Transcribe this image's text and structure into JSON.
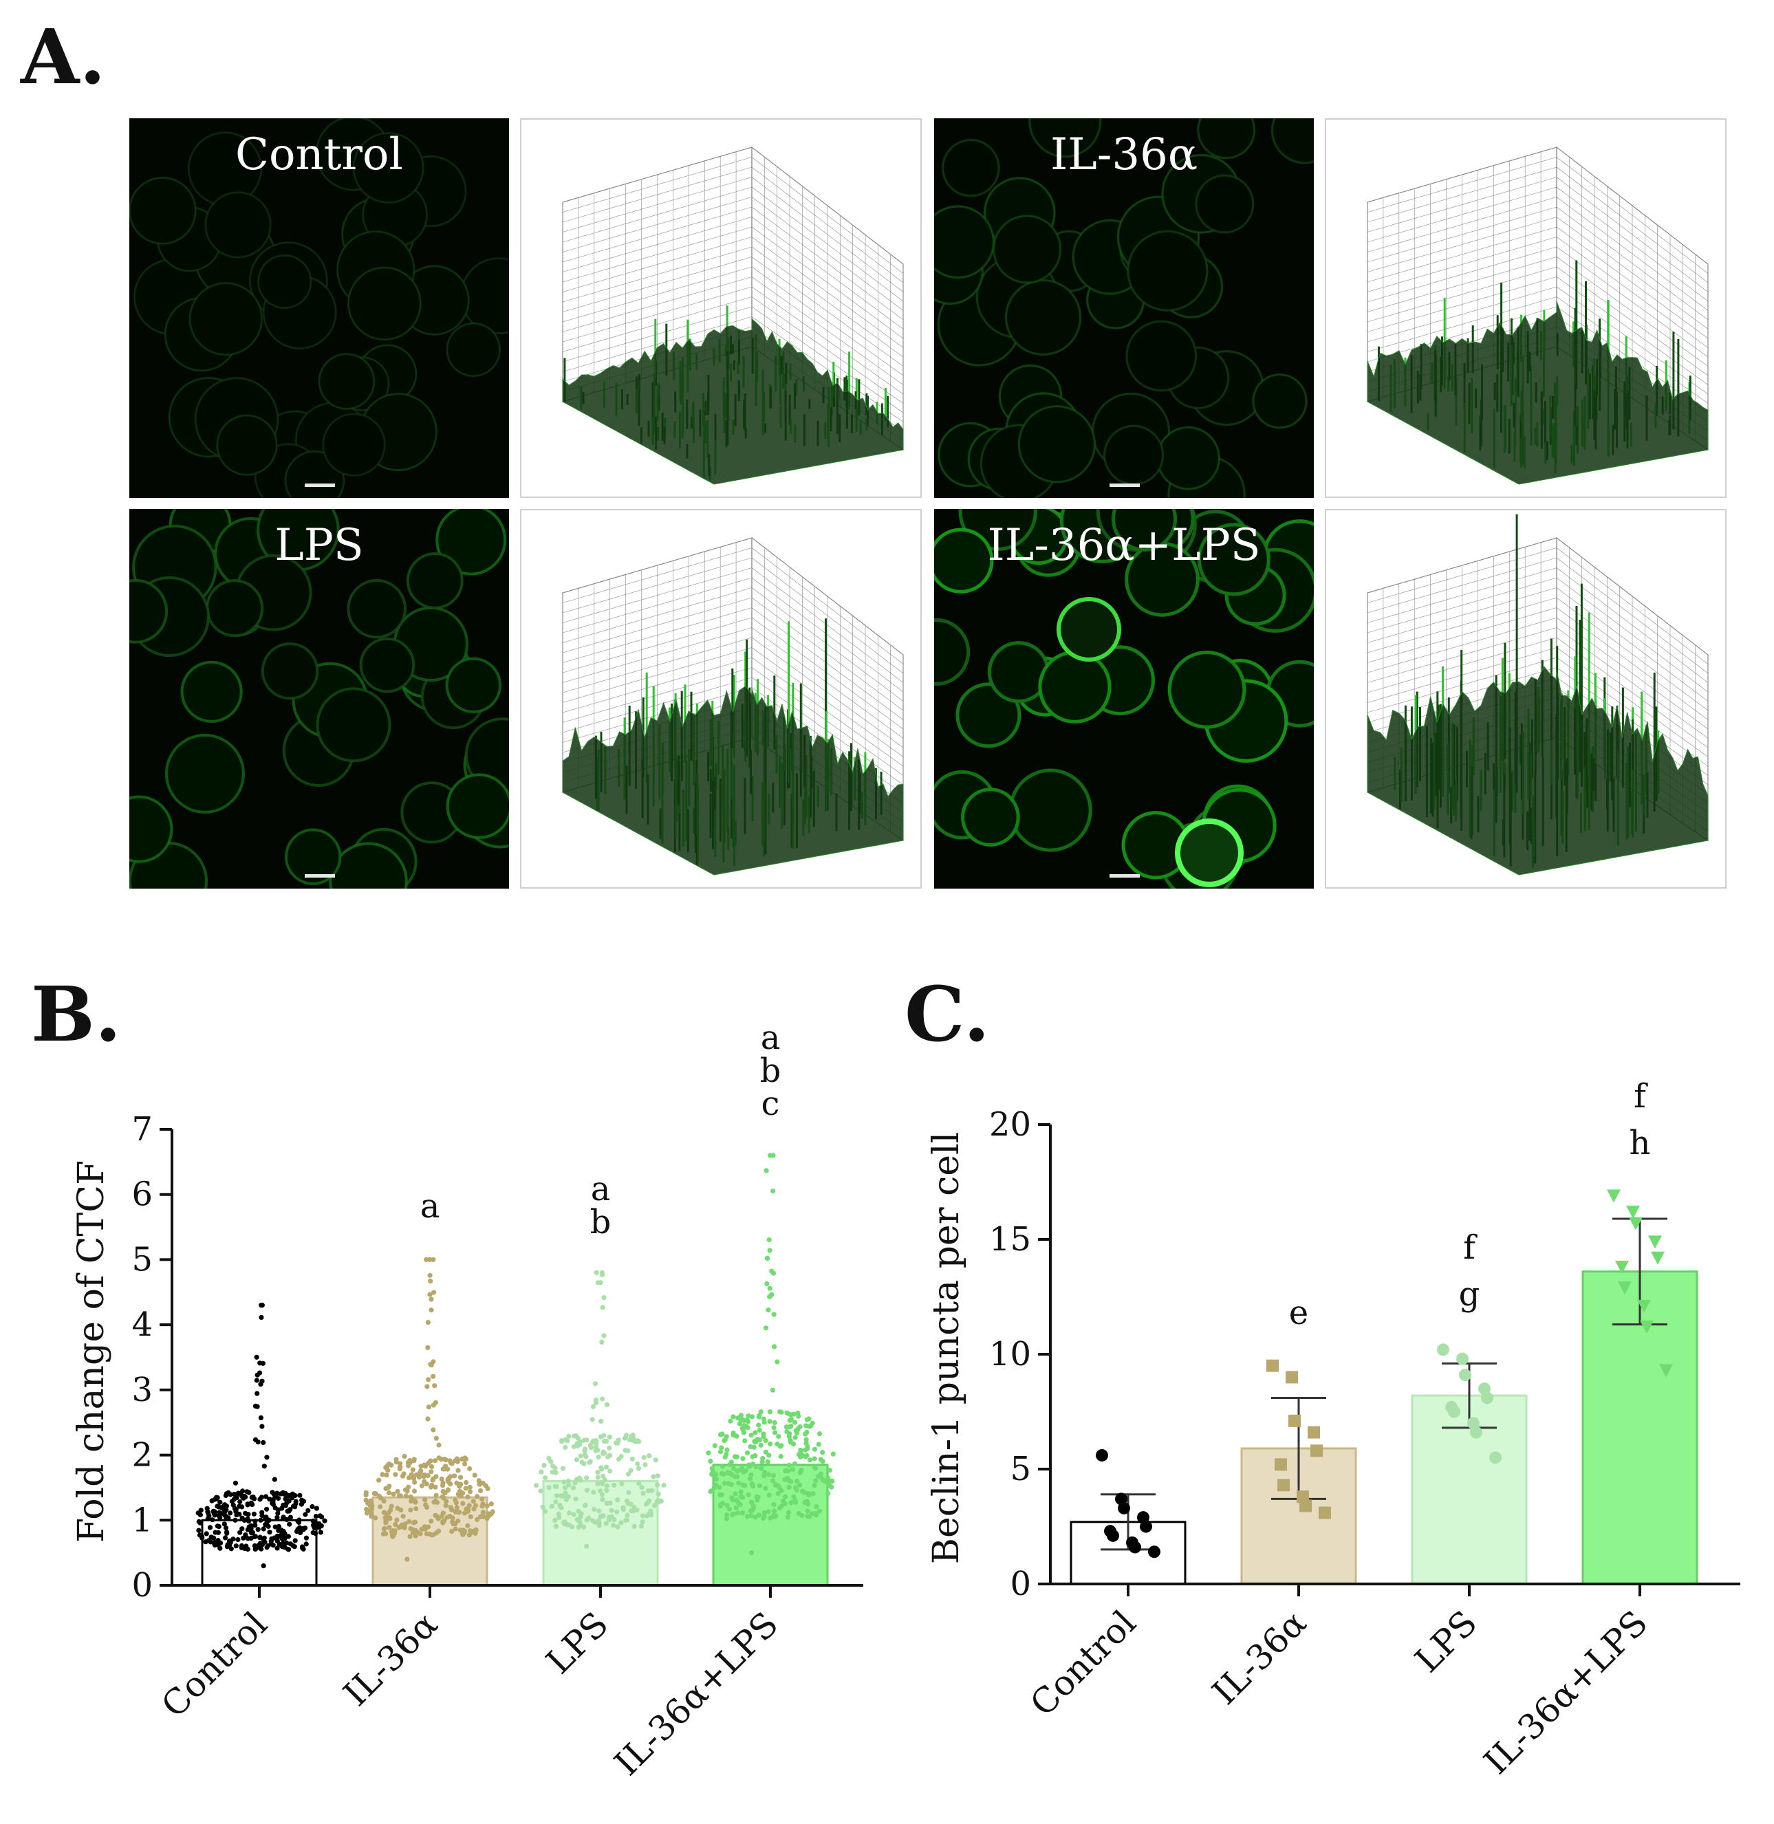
{
  "panel_labels": {
    "a": "A.",
    "b": "B.",
    "c": "C."
  },
  "micrographs": [
    {
      "title": "Control",
      "brightness": 0.25
    },
    {
      "title": "IL-36α",
      "brightness": 0.4
    },
    {
      "title": "LPS",
      "brightness": 0.65
    },
    {
      "title": "IL-36α+LPS",
      "brightness": 1.0
    }
  ],
  "surface_plots": [
    {
      "for": "Control",
      "intensity": 0.35
    },
    {
      "for": "IL-36α",
      "intensity": 0.55
    },
    {
      "for": "LPS",
      "intensity": 0.75
    },
    {
      "for": "IL-36α+LPS",
      "intensity": 0.95
    }
  ],
  "colors": {
    "control": "#ffffff",
    "il36a": "#e8dcc0",
    "lps": "#d4f7d4",
    "combo": "#8ef58e",
    "il36a_points": "#b8a76a",
    "lps_points": "#a9e0a9",
    "combo_points": "#6fdc6f",
    "control_points": "#000000"
  },
  "chart_data": [
    {
      "type": "bar",
      "panel": "B.",
      "categories": [
        "Control",
        "IL-36α",
        "LPS",
        "IL-36α+LPS"
      ],
      "values": [
        1.0,
        1.35,
        1.6,
        1.85
      ],
      "ylabel": "Fold change of CTCF",
      "ylim": [
        0,
        7
      ],
      "yticks": [
        0,
        1,
        2,
        3,
        4,
        5,
        6,
        7
      ],
      "annotations": [
        [],
        [
          "a"
        ],
        [
          "a",
          "b"
        ],
        [
          "a",
          "b",
          "c"
        ]
      ],
      "point_ranges": [
        {
          "min": 0.3,
          "max": 4.3,
          "n": 320
        },
        {
          "min": 0.4,
          "max": 5.0,
          "n": 320
        },
        {
          "min": 0.6,
          "max": 4.8,
          "n": 240
        },
        {
          "min": 0.5,
          "max": 6.6,
          "n": 320
        }
      ]
    },
    {
      "type": "bar",
      "panel": "C.",
      "categories": [
        "Control",
        "IL-36α",
        "LPS",
        "IL-36α+LPS"
      ],
      "values": [
        2.7,
        5.9,
        8.2,
        13.6
      ],
      "errors": [
        1.2,
        2.2,
        1.4,
        2.3
      ],
      "ylabel": "Beclin-1 puncta per cell",
      "ylim": [
        0,
        20
      ],
      "yticks": [
        0,
        5,
        10,
        15,
        20
      ],
      "annotations": [
        [],
        [
          "e"
        ],
        [
          "f",
          "g"
        ],
        [
          "f",
          "h"
        ]
      ],
      "points": [
        [
          5.6,
          3.7,
          3.3,
          2.9,
          2.5,
          2.3,
          2.1,
          1.8,
          1.6,
          1.4
        ],
        [
          9.5,
          9.0,
          7.1,
          6.6,
          5.8,
          5.2,
          4.3,
          3.8,
          3.4,
          3.1
        ],
        [
          10.2,
          9.8,
          9.1,
          8.5,
          8.1,
          7.7,
          7.5,
          7.0,
          6.6,
          5.5
        ],
        [
          16.9,
          16.2,
          15.7,
          14.9,
          14.2,
          13.8,
          12.9,
          12.1,
          11.2,
          9.3
        ]
      ],
      "markers": [
        "circle",
        "square",
        "circle",
        "triangle-down"
      ]
    }
  ]
}
